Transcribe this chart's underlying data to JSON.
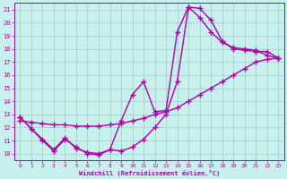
{
  "xlabel": "Windchill (Refroidissement éolien,°C)",
  "xlim": [
    -0.5,
    23.5
  ],
  "ylim": [
    9.5,
    21.5
  ],
  "xticks": [
    0,
    1,
    2,
    3,
    4,
    5,
    6,
    7,
    8,
    9,
    10,
    11,
    12,
    13,
    14,
    15,
    16,
    17,
    18,
    19,
    20,
    21,
    22,
    23
  ],
  "yticks": [
    10,
    11,
    12,
    13,
    14,
    15,
    16,
    17,
    18,
    19,
    20,
    21
  ],
  "bg_color": "#c8f0ec",
  "grid_color": "#a0c8c4",
  "line_color": "#aa00aa",
  "marker": "+",
  "markersize": 4,
  "linewidth": 1.0,
  "lines": [
    {
      "x": [
        0,
        1,
        2,
        3,
        4,
        5,
        6,
        7,
        8,
        9,
        10,
        11,
        12,
        13,
        14,
        15,
        16,
        17,
        18,
        19,
        20,
        21,
        22,
        23
      ],
      "y": [
        12.8,
        11.9,
        11.0,
        10.2,
        11.1,
        10.5,
        10.0,
        9.9,
        10.3,
        10.2,
        10.5,
        11.1,
        12.0,
        13.0,
        15.5,
        21.2,
        21.1,
        20.2,
        18.6,
        18.0,
        17.9,
        17.8,
        17.8,
        17.3
      ]
    },
    {
      "x": [
        0,
        1,
        2,
        3,
        4,
        5,
        6,
        7,
        8,
        9,
        10,
        11,
        12,
        13,
        14,
        15,
        16,
        17,
        18,
        19,
        20,
        21,
        22,
        23
      ],
      "y": [
        12.5,
        12.4,
        12.3,
        12.2,
        12.2,
        12.1,
        12.1,
        12.1,
        12.2,
        12.3,
        12.5,
        12.7,
        13.0,
        13.2,
        13.5,
        14.0,
        14.5,
        15.0,
        15.5,
        16.0,
        16.5,
        17.0,
        17.2,
        17.3
      ]
    },
    {
      "x": [
        0,
        1,
        2,
        3,
        4,
        5,
        6,
        7,
        8,
        9,
        10,
        11,
        12,
        13,
        14,
        15,
        16,
        17,
        18,
        19,
        20,
        21,
        22,
        23
      ],
      "y": [
        12.8,
        11.9,
        11.1,
        10.3,
        11.2,
        10.4,
        10.1,
        10.0,
        10.3,
        12.5,
        14.5,
        15.5,
        13.2,
        13.3,
        19.3,
        21.2,
        20.4,
        19.3,
        18.5,
        18.1,
        18.0,
        17.9,
        17.5,
        17.3
      ]
    }
  ]
}
